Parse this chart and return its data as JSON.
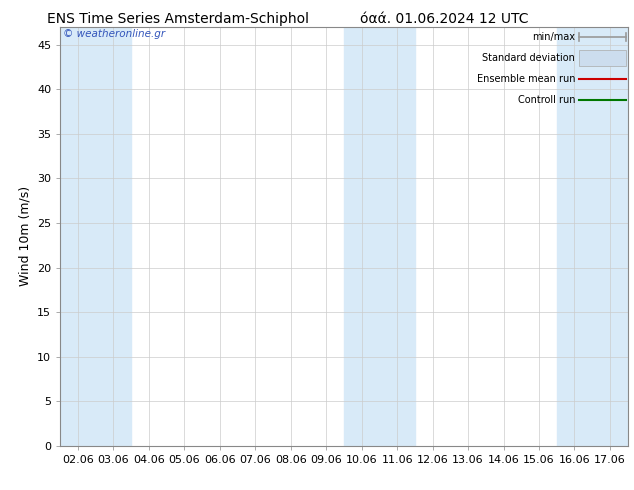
{
  "title_left": "ENS Time Series Amsterdam-Schiphol",
  "title_right": "όαά. 01.06.2024 12 UTC",
  "ylabel": "Wind 10m (m/s)",
  "watermark": "© weatheronline.gr",
  "bg_color": "#ffffff",
  "plot_bg_color": "#ffffff",
  "x_labels": [
    "02.06",
    "03.06",
    "04.06",
    "05.06",
    "06.06",
    "07.06",
    "08.06",
    "09.06",
    "10.06",
    "11.06",
    "12.06",
    "13.06",
    "14.06",
    "15.06",
    "16.06",
    "17.06"
  ],
  "shaded_indices": [
    0,
    1,
    8,
    9,
    14,
    15
  ],
  "ylim": [
    0,
    47
  ],
  "yticks": [
    0,
    5,
    10,
    15,
    20,
    25,
    30,
    35,
    40,
    45
  ],
  "legend_items": [
    {
      "label": "min/max",
      "color": "#aaaaaa",
      "style": "minmax"
    },
    {
      "label": "Standard deviation",
      "color": "#ccddee",
      "style": "box"
    },
    {
      "label": "Ensemble mean run",
      "color": "#cc0000",
      "style": "line"
    },
    {
      "label": "Controll run",
      "color": "#007700",
      "style": "line"
    }
  ],
  "shaded_color": "#d8eaf8",
  "grid_color": "#cccccc",
  "title_fontsize": 10,
  "axis_fontsize": 9,
  "tick_fontsize": 8,
  "watermark_color": "#3355bb"
}
